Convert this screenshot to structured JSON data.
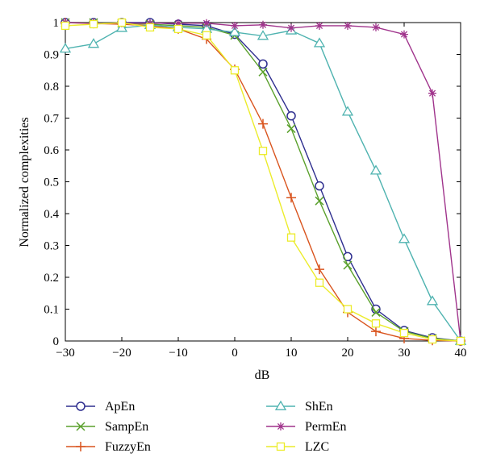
{
  "chart_data": {
    "type": "line",
    "title": "",
    "xlabel": "dB",
    "ylabel": "Normalized complexities",
    "xlim": [
      -30,
      40
    ],
    "ylim": [
      0,
      1
    ],
    "xticks": [
      -30,
      -20,
      -10,
      0,
      10,
      20,
      30,
      40
    ],
    "yticks": [
      0,
      0.1,
      0.2,
      0.3,
      0.4,
      0.5,
      0.6,
      0.7,
      0.8,
      0.9,
      1
    ],
    "xtick_labels": [
      "−30",
      "−20",
      "−10",
      "0",
      "10",
      "20",
      "30",
      "40"
    ],
    "ytick_labels": [
      "0",
      "0.1",
      "0.2",
      "0.3",
      "0.4",
      "0.5",
      "0.6",
      "0.7",
      "0.8",
      "0.9",
      "1"
    ],
    "grid": false,
    "legend_placement": "bottom",
    "x": [
      -30,
      -25,
      -20,
      -15,
      -10,
      -5,
      0,
      5,
      10,
      15,
      20,
      25,
      30,
      35,
      40
    ],
    "series": [
      {
        "name": "ApEn",
        "color": "#2e2e8f",
        "marker": "circle",
        "values": [
          1.0,
          1.0,
          1.0,
          1.0,
          0.995,
          0.99,
          0.963,
          0.87,
          0.707,
          0.487,
          0.265,
          0.1,
          0.033,
          0.01,
          0.0
        ]
      },
      {
        "name": "SampEn",
        "color": "#5aa02c",
        "marker": "x",
        "values": [
          1.0,
          1.0,
          0.998,
          0.995,
          0.99,
          0.985,
          0.96,
          0.845,
          0.667,
          0.44,
          0.238,
          0.09,
          0.03,
          0.008,
          0.0
        ]
      },
      {
        "name": "FuzzyEn",
        "color": "#d9541e",
        "marker": "plus",
        "values": [
          1.0,
          0.997,
          0.995,
          0.99,
          0.98,
          0.948,
          0.853,
          0.682,
          0.45,
          0.225,
          0.09,
          0.03,
          0.008,
          0.002,
          0.0
        ]
      },
      {
        "name": "ShEn",
        "color": "#4fb3b0",
        "marker": "triangle",
        "values": [
          0.918,
          0.933,
          0.983,
          0.992,
          0.985,
          0.98,
          0.97,
          0.958,
          0.975,
          0.935,
          0.72,
          0.535,
          0.32,
          0.125,
          0.0
        ]
      },
      {
        "name": "PermEn",
        "color": "#a0348c",
        "marker": "star",
        "values": [
          1.0,
          0.998,
          0.998,
          0.998,
          0.998,
          0.998,
          0.99,
          0.993,
          0.983,
          0.99,
          0.99,
          0.985,
          0.963,
          0.778,
          0.0
        ]
      },
      {
        "name": "LZC",
        "color": "#ecec2a",
        "marker": "square",
        "values": [
          0.99,
          0.995,
          1.0,
          0.985,
          0.98,
          0.96,
          0.85,
          0.597,
          0.325,
          0.183,
          0.1,
          0.055,
          0.025,
          0.005,
          0.0
        ]
      }
    ]
  }
}
